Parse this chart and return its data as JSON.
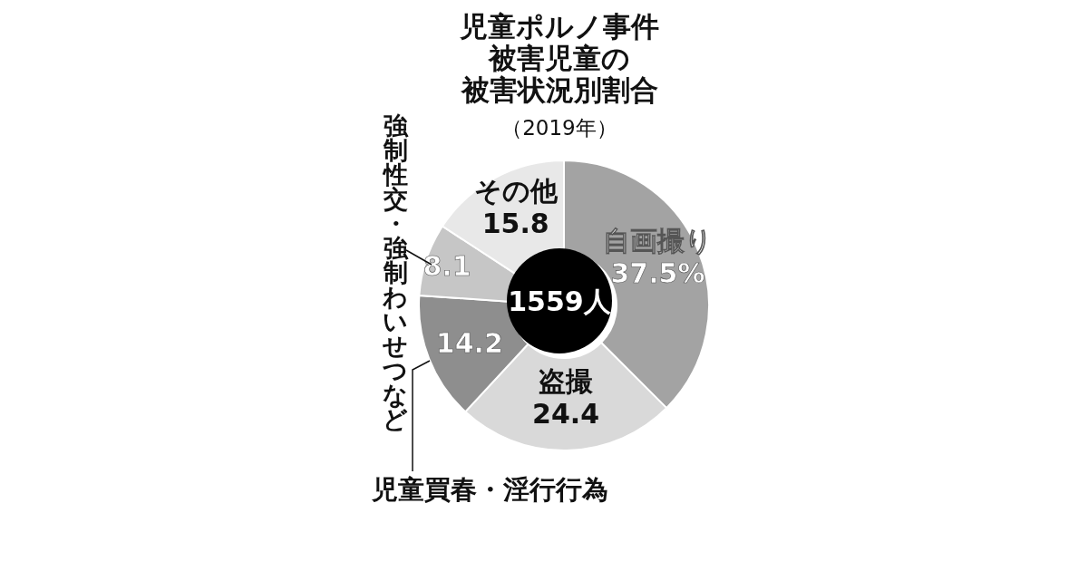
{
  "chart_data": {
    "type": "donut",
    "title": "児童ポルノ事件被害児童の被害状況別割合",
    "subtitle": "（2019年）",
    "categories": [
      "自画撮り",
      "盗撮",
      "児童買春・淫行行為",
      "強制性交・強制わいせつなど",
      "その他"
    ],
    "values": [
      37.5,
      24.4,
      14.2,
      8.1,
      15.8
    ],
    "value_labels": [
      "37.5%",
      "24.4",
      "14.2",
      "8.1",
      "15.8"
    ],
    "colors": [
      "#a3a3a3",
      "#d9d9d9",
      "#8e8e8e",
      "#c6c6c6",
      "#e8e8e8"
    ],
    "annotations": [
      "1559人"
    ],
    "legend": false
  }
}
